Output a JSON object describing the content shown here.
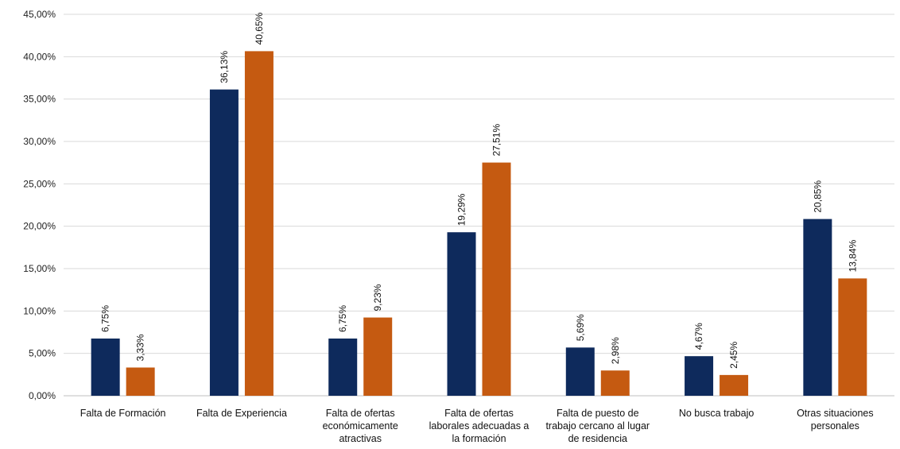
{
  "chart_data": {
    "type": "bar",
    "title": "",
    "xlabel": "",
    "ylabel": "",
    "ylim": [
      0,
      45
    ],
    "yticks": [
      "0,00%",
      "5,00%",
      "10,00%",
      "15,00%",
      "20,00%",
      "25,00%",
      "30,00%",
      "35,00%",
      "40,00%",
      "45,00%"
    ],
    "grid": true,
    "legend": "none",
    "categories": [
      [
        "Falta de Formación"
      ],
      [
        "Falta de Experiencia"
      ],
      [
        "Falta de ofertas",
        "económicamente",
        "atractivas"
      ],
      [
        "Falta de ofertas",
        "laborales adecuadas a",
        "la formación"
      ],
      [
        "Falta de puesto de",
        "trabajo cercano al lugar",
        "de residencia"
      ],
      [
        "No busca trabajo"
      ],
      [
        "Otras situaciones",
        "personales"
      ]
    ],
    "series": [
      {
        "color": "#0e2a5c",
        "values": [
          6.75,
          36.13,
          6.75,
          19.29,
          5.69,
          4.67,
          20.85
        ],
        "labels": [
          "6,75%",
          "36,13%",
          "6,75%",
          "19,29%",
          "5,69%",
          "4,67%",
          "20,85%"
        ]
      },
      {
        "color": "#c55a11",
        "values": [
          3.33,
          40.65,
          9.23,
          27.51,
          2.98,
          2.45,
          13.84
        ],
        "labels": [
          "3,33%",
          "40,65%",
          "9,23%",
          "27,51%",
          "2,98%",
          "2,45%",
          "13,84%"
        ]
      }
    ]
  }
}
